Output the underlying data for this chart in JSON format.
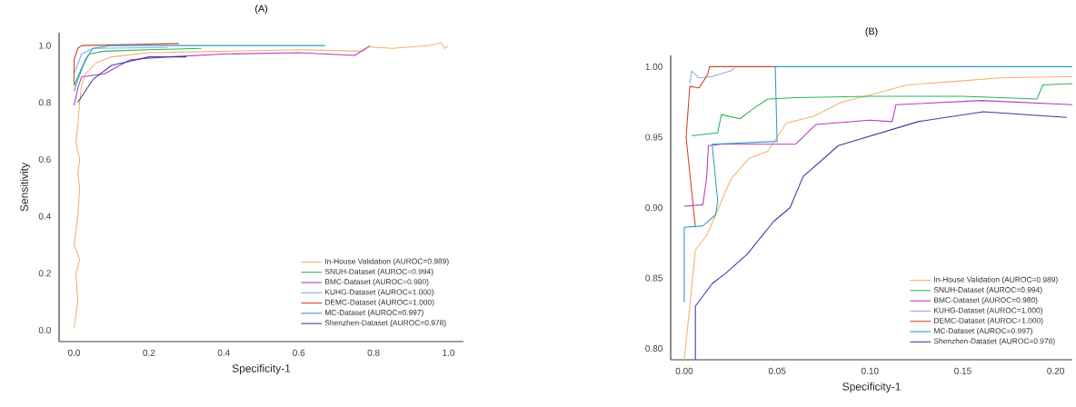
{
  "chart_data": [
    {
      "type": "line",
      "title": "(A)",
      "xlabel": "Specificity-1",
      "ylabel": "Sensitivity",
      "xlim": [
        -0.04,
        1.04
      ],
      "ylim": [
        -0.04,
        1.045
      ],
      "xticks": [
        {
          "value": 0,
          "label": "0.0"
        },
        0.2,
        0.4,
        0.6,
        0.8,
        {
          "value": 1,
          "label": "1.0"
        }
      ],
      "yticks": [
        {
          "value": 0,
          "label": "0.0"
        },
        0.2,
        0.4,
        0.6,
        0.8,
        {
          "value": 1,
          "label": "1.0"
        }
      ],
      "legend": "bottom right",
      "series": [
        {
          "name": "In-House Validation (AUROC=0.989)",
          "color": "#f4b26a",
          "x": [
            0.0,
            0.01,
            0.005,
            0.015,
            0.0,
            0.01,
            0.015,
            0.01,
            0.015,
            0.005,
            0.01,
            0.015,
            0.02,
            0.03,
            0.06,
            0.1,
            0.2,
            0.4,
            0.6,
            0.77,
            0.79,
            0.85,
            0.95,
            0.98,
            0.99,
            1.0
          ],
          "values": [
            0.01,
            0.1,
            0.2,
            0.25,
            0.3,
            0.4,
            0.5,
            0.55,
            0.6,
            0.66,
            0.72,
            0.8,
            0.86,
            0.9,
            0.94,
            0.96,
            0.975,
            0.98,
            0.985,
            0.98,
            0.995,
            0.99,
            1.0,
            1.01,
            0.99,
            1.0
          ]
        },
        {
          "name": "SNUH-Dataset (AUROC=0.994)",
          "color": "#2cb35a",
          "x": [
            0.0,
            0.01,
            0.02,
            0.04,
            0.08,
            0.2,
            0.34
          ],
          "values": [
            0.86,
            0.89,
            0.92,
            0.97,
            0.98,
            0.985,
            0.99
          ]
        },
        {
          "name": "BMC-Dataset (AUROC=0.980)",
          "color": "#b43cc0",
          "x": [
            0.0,
            0.01,
            0.02,
            0.08,
            0.15,
            0.25,
            0.4,
            0.6,
            0.75,
            0.79
          ],
          "values": [
            0.79,
            0.85,
            0.89,
            0.9,
            0.95,
            0.96,
            0.97,
            0.975,
            0.965,
            1.0
          ]
        },
        {
          "name": "KUHG-Dataset (AUROC=1.000)",
          "color": "#8fa8e0",
          "x": [
            0.0,
            0.02,
            0.05,
            0.25
          ],
          "values": [
            0.9,
            0.97,
            0.99,
            0.993
          ]
        },
        {
          "name": "DEMC-Dataset (AUROC=1.000)",
          "color": "#d0452c",
          "x": [
            0.0,
            0.0,
            0.01,
            0.02,
            0.28
          ],
          "values": [
            0.86,
            0.95,
            0.99,
            1.0,
            1.007
          ]
        },
        {
          "name": "MC-Dataset (AUROC=0.997)",
          "color": "#2a9ec8",
          "x": [
            0.0,
            0.01,
            0.03,
            0.05,
            0.1,
            0.67
          ],
          "values": [
            0.84,
            0.88,
            0.95,
            0.99,
            1.0,
            1.0
          ]
        },
        {
          "name": "Shenzhen-Dataset (AUROC=0.978)",
          "color": "#3b3ba0",
          "x": [
            0.01,
            0.05,
            0.1,
            0.2,
            0.3
          ],
          "values": [
            0.8,
            0.88,
            0.93,
            0.96,
            0.96
          ]
        }
      ]
    },
    {
      "type": "line",
      "title": "(B)",
      "xlabel": "Specificity-1",
      "xlim": [
        -0.0073,
        0.209
      ],
      "ylim": [
        0.792,
        1.008
      ],
      "xticks": [
        {
          "value": 0,
          "label": "0.00"
        },
        0.05,
        {
          "value": 0.1,
          "label": "0.10"
        },
        0.15,
        {
          "value": 0.2,
          "label": "0.20"
        }
      ],
      "yticks": [
        {
          "value": 0.8,
          "label": "0.80"
        },
        0.85,
        {
          "value": 0.9,
          "label": "0.90"
        },
        0.95,
        {
          "value": 1,
          "label": "1.00"
        }
      ],
      "legend": "bottom right",
      "series": [
        {
          "name": "In-House Validation (AUROC=0.989)",
          "color": "#f4b26a",
          "x": [
            0.0,
            0.003,
            0.006,
            0.012,
            0.017,
            0.025,
            0.035,
            0.045,
            0.055,
            0.07,
            0.085,
            0.1,
            0.12,
            0.15,
            0.17,
            0.209
          ],
          "values": [
            0.792,
            0.83,
            0.87,
            0.88,
            0.895,
            0.92,
            0.935,
            0.94,
            0.96,
            0.965,
            0.975,
            0.98,
            0.987,
            0.99,
            0.992,
            0.993
          ]
        },
        {
          "name": "SNUH-Dataset (AUROC=0.994)",
          "color": "#2cb35a",
          "x": [
            0.004,
            0.018,
            0.02,
            0.03,
            0.037,
            0.045,
            0.06,
            0.1,
            0.15,
            0.19,
            0.193,
            0.209
          ],
          "values": [
            0.951,
            0.953,
            0.966,
            0.963,
            0.97,
            0.977,
            0.978,
            0.979,
            0.979,
            0.977,
            0.987,
            0.988
          ]
        },
        {
          "name": "BMC-Dataset (AUROC=0.980)",
          "color": "#b43cc0",
          "x": [
            0.0,
            0.01,
            0.012,
            0.013,
            0.02,
            0.06,
            0.071,
            0.1,
            0.112,
            0.114,
            0.16,
            0.209
          ],
          "values": [
            0.901,
            0.902,
            0.92,
            0.944,
            0.945,
            0.945,
            0.959,
            0.962,
            0.961,
            0.973,
            0.976,
            0.973
          ]
        },
        {
          "name": "KUHG-Dataset (AUROC=1.000)",
          "color": "#8fa8e0",
          "x": [
            0.003,
            0.004,
            0.008,
            0.015,
            0.025,
            0.027
          ],
          "values": [
            0.988,
            0.997,
            0.992,
            0.993,
            0.997,
            0.999
          ]
        },
        {
          "name": "DEMC-Dataset (AUROC=1.000)",
          "color": "#d0452c",
          "x": [
            0.006,
            0.001,
            0.003,
            0.008,
            0.0126,
            0.0136,
            0.05
          ],
          "values": [
            0.886,
            0.95,
            0.986,
            0.985,
            0.9945,
            1.0,
            1.0
          ]
        },
        {
          "name": "MC-Dataset (AUROC=0.997)",
          "color": "#2a9ec8",
          "x": [
            0.0,
            0.0,
            0.01,
            0.017,
            0.018,
            0.015,
            0.05,
            0.049,
            0.1,
            0.15,
            0.209
          ],
          "values": [
            0.833,
            0.886,
            0.887,
            0.895,
            0.905,
            0.945,
            0.947,
            1.0,
            1.0,
            1.0,
            1.0
          ]
        },
        {
          "name": "Shenzhen-Dataset (AUROC=0.978)",
          "color": "#3b3ba0",
          "x": [
            0.006,
            0.006,
            0.015,
            0.022,
            0.034,
            0.048,
            0.057,
            0.064,
            0.083,
            0.126,
            0.161,
            0.206
          ],
          "values": [
            0.792,
            0.83,
            0.846,
            0.853,
            0.867,
            0.89,
            0.9,
            0.922,
            0.944,
            0.961,
            0.968,
            0.964
          ]
        }
      ]
    }
  ]
}
